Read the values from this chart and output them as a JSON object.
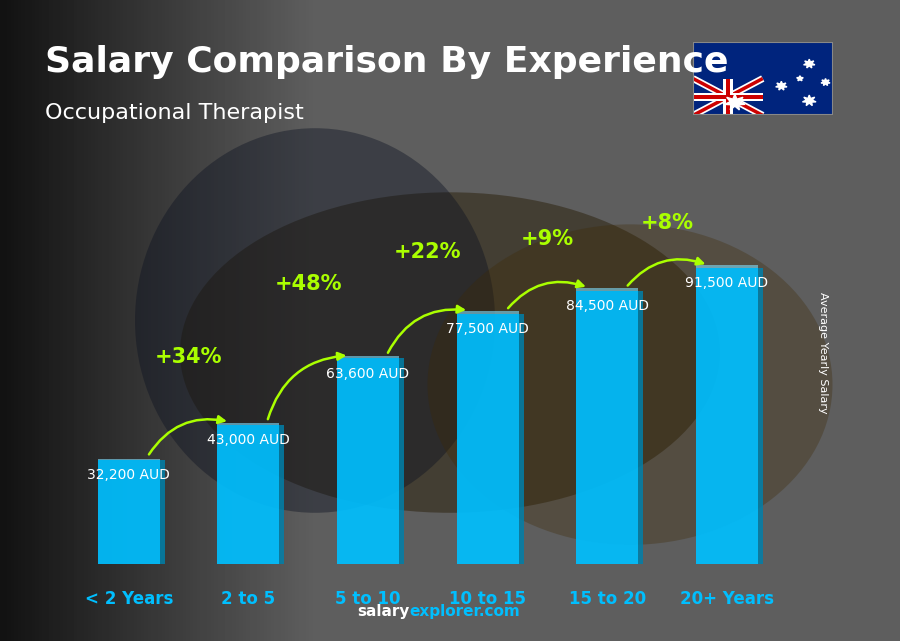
{
  "title": "Salary Comparison By Experience",
  "subtitle": "Occupational Therapist",
  "ylabel": "Average Yearly Salary",
  "footer_bold": "salary",
  "footer_light": "explorer.com",
  "categories": [
    "< 2 Years",
    "2 to 5",
    "5 to 10",
    "10 to 15",
    "15 to 20",
    "20+ Years"
  ],
  "values": [
    32200,
    43000,
    63600,
    77500,
    84500,
    91500
  ],
  "labels": [
    "32,200 AUD",
    "43,000 AUD",
    "63,600 AUD",
    "77,500 AUD",
    "84,500 AUD",
    "91,500 AUD"
  ],
  "pct_changes": [
    "+34%",
    "+48%",
    "+22%",
    "+9%",
    "+8%"
  ],
  "bar_color": "#00BFFF",
  "bar_shadow_color": "#0080AA",
  "pct_color": "#AAFF00",
  "label_color": "#FFFFFF",
  "title_color": "#FFFFFF",
  "subtitle_color": "#FFFFFF",
  "cat_color": "#00BFFF",
  "footer_bold_color": "#FFFFFF",
  "footer_light_color": "#00BFFF",
  "ylabel_color": "#FFFFFF",
  "title_fontsize": 26,
  "subtitle_fontsize": 16,
  "label_fontsize": 10,
  "pct_fontsize": 15,
  "cat_fontsize": 12,
  "footer_fontsize": 11,
  "ylabel_fontsize": 8,
  "bar_width": 0.52,
  "ylim_max": 115000,
  "bg_dark": "#1C1C1C",
  "bg_mid": "#2A2A2A"
}
